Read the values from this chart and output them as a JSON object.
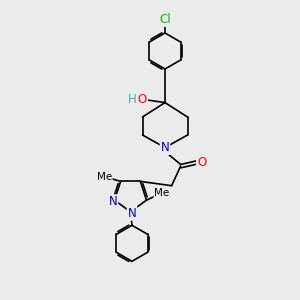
{
  "bg_color": "#ebebeb",
  "atom_colors": {
    "N": "#0000cc",
    "O": "#ff0000",
    "Cl": "#00bb00",
    "C": "#000000",
    "H": "#5f9ea0"
  },
  "bond_color": "#000000",
  "font_size_atoms": 8.5,
  "font_size_me": 7.5,
  "lw": 1.2
}
